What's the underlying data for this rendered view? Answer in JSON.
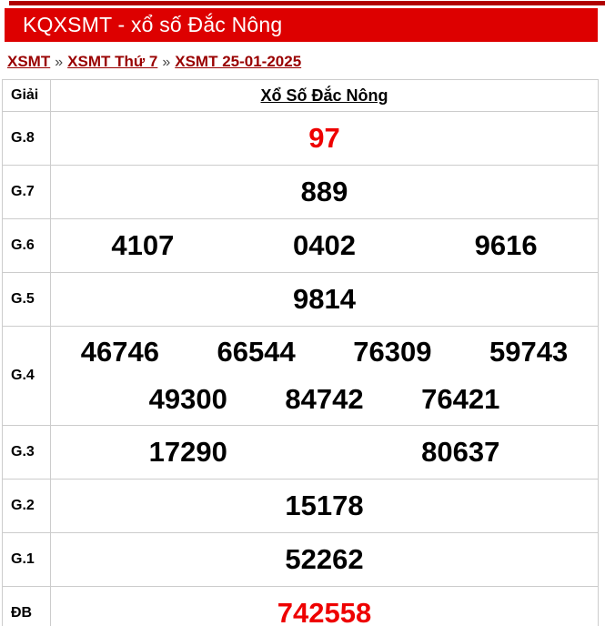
{
  "title_bar": {
    "text": "KQXSMT - xổ số Đắc Nông"
  },
  "breadcrumb": {
    "separator": "»",
    "items": [
      {
        "label": "XSMT"
      },
      {
        "label": "XSMT Thứ 7"
      },
      {
        "label": "XSMT 25-01-2025"
      }
    ]
  },
  "table": {
    "label_header": "Giải",
    "station_title": "Xổ Số Đắc Nông",
    "rows": [
      {
        "key": "g8",
        "label": "G.8",
        "per_line": 1,
        "color": "red",
        "tall": false,
        "numbers": [
          "97"
        ]
      },
      {
        "key": "g7",
        "label": "G.7",
        "per_line": 1,
        "color": "black",
        "tall": false,
        "numbers": [
          "889"
        ]
      },
      {
        "key": "g6",
        "label": "G.6",
        "per_line": 3,
        "color": "black",
        "tall": false,
        "numbers": [
          "4107",
          "0402",
          "9616"
        ]
      },
      {
        "key": "g5",
        "label": "G.5",
        "per_line": 1,
        "color": "black",
        "tall": false,
        "numbers": [
          "9814"
        ]
      },
      {
        "key": "g4",
        "label": "G.4",
        "per_line": 4,
        "color": "black",
        "tall": true,
        "numbers": [
          "46746",
          "66544",
          "76309",
          "59743",
          "49300",
          "84742",
          "76421"
        ]
      },
      {
        "key": "g3",
        "label": "G.3",
        "per_line": 2,
        "color": "black",
        "tall": false,
        "numbers": [
          "17290",
          "80637"
        ]
      },
      {
        "key": "g2",
        "label": "G.2",
        "per_line": 1,
        "color": "black",
        "tall": false,
        "numbers": [
          "15178"
        ]
      },
      {
        "key": "g1",
        "label": "G.1",
        "per_line": 1,
        "color": "black",
        "tall": false,
        "numbers": [
          "52262"
        ]
      },
      {
        "key": "db",
        "label": "ĐB",
        "per_line": 1,
        "color": "red",
        "tall": false,
        "numbers": [
          "742558"
        ]
      }
    ]
  },
  "colors": {
    "top_strip": "#b00000",
    "header_bar": "#dd0000",
    "header_text": "#ffffff",
    "breadcrumb_link": "#990000",
    "red_number": "#ee0000",
    "black_number": "#000000",
    "border": "#cccccc"
  }
}
